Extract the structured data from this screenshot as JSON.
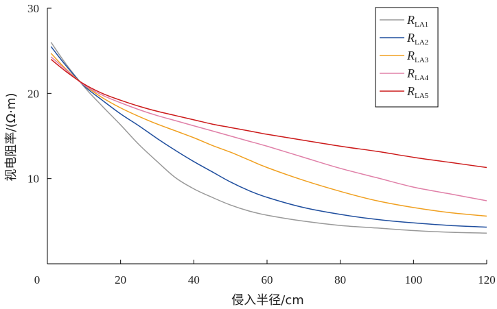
{
  "chart_data": {
    "type": "line",
    "xlabel": "侵入半径/cm",
    "ylabel": "视电阻率/(Ω·m)",
    "xlim": [
      0,
      120
    ],
    "ylim": [
      0,
      30
    ],
    "xticks": [
      0,
      20,
      40,
      60,
      80,
      100,
      120
    ],
    "yticks": [
      10,
      20,
      30
    ],
    "grid": false,
    "legend_position": "top-right",
    "series": [
      {
        "name": "R_LA1",
        "label_main": "R",
        "label_sub": "LA1",
        "color": "#999999",
        "x": [
          1,
          5,
          10,
          15,
          20,
          25,
          30,
          35,
          40,
          45,
          50,
          55,
          60,
          70,
          80,
          90,
          100,
          110,
          120
        ],
        "y": [
          26.0,
          23.5,
          20.8,
          18.5,
          16.3,
          14.0,
          12.0,
          10.1,
          8.8,
          7.8,
          6.9,
          6.2,
          5.7,
          5.0,
          4.5,
          4.2,
          3.9,
          3.7,
          3.6
        ]
      },
      {
        "name": "R_LA2",
        "label_main": "R",
        "label_sub": "LA2",
        "color": "#1f4e9e",
        "x": [
          1,
          5,
          10,
          15,
          20,
          25,
          30,
          35,
          40,
          45,
          50,
          55,
          60,
          70,
          80,
          90,
          100,
          110,
          120
        ],
        "y": [
          25.5,
          23.3,
          20.9,
          19.2,
          17.6,
          16.2,
          14.7,
          13.3,
          12.0,
          10.8,
          9.6,
          8.6,
          7.8,
          6.6,
          5.8,
          5.2,
          4.8,
          4.5,
          4.3
        ]
      },
      {
        "name": "R_LA3",
        "label_main": "R",
        "label_sub": "LA3",
        "color": "#f0a020",
        "x": [
          1,
          5,
          10,
          15,
          20,
          25,
          30,
          35,
          40,
          45,
          50,
          55,
          60,
          70,
          80,
          90,
          100,
          110,
          120
        ],
        "y": [
          24.7,
          22.9,
          21.0,
          19.5,
          18.3,
          17.3,
          16.4,
          15.6,
          14.8,
          13.9,
          13.1,
          12.2,
          11.3,
          9.8,
          8.5,
          7.4,
          6.6,
          6.0,
          5.6
        ]
      },
      {
        "name": "R_LA4",
        "label_main": "R",
        "label_sub": "LA4",
        "color": "#e080a8",
        "x": [
          1,
          5,
          10,
          15,
          20,
          25,
          30,
          35,
          40,
          45,
          50,
          55,
          60,
          70,
          80,
          90,
          100,
          110,
          120
        ],
        "y": [
          24.3,
          22.8,
          21.0,
          19.8,
          18.9,
          18.1,
          17.4,
          16.8,
          16.2,
          15.6,
          15.0,
          14.4,
          13.8,
          12.5,
          11.2,
          10.1,
          9.0,
          8.2,
          7.4
        ]
      },
      {
        "name": "R_LA5",
        "label_main": "R",
        "label_sub": "LA5",
        "color": "#cc1a1a",
        "x": [
          1,
          5,
          10,
          15,
          20,
          25,
          30,
          35,
          40,
          45,
          50,
          55,
          60,
          70,
          80,
          90,
          100,
          110,
          120
        ],
        "y": [
          24.0,
          22.6,
          21.1,
          20.0,
          19.2,
          18.5,
          17.9,
          17.4,
          16.9,
          16.4,
          16.0,
          15.6,
          15.2,
          14.5,
          13.8,
          13.2,
          12.5,
          11.9,
          11.3
        ]
      }
    ]
  }
}
